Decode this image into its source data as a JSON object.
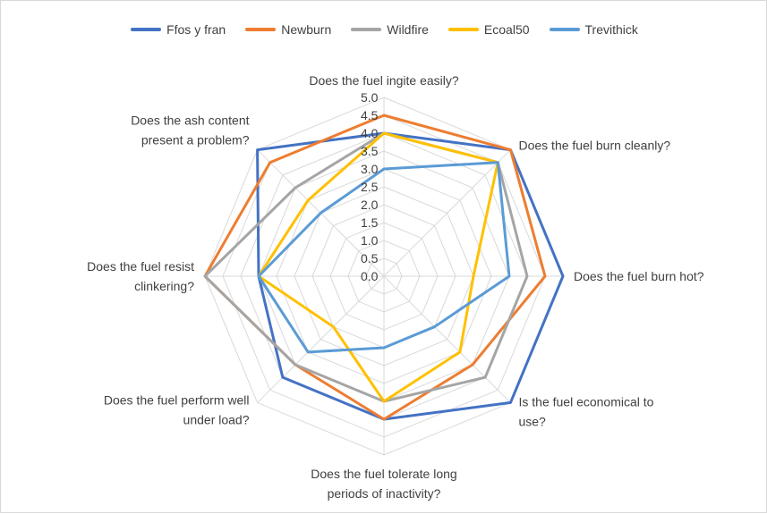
{
  "chart_data": {
    "type": "radar",
    "title": "",
    "categories": [
      "Does the fuel ingite easily?",
      "Does the fuel burn cleanly?",
      "Does the fuel burn hot?",
      "Is the fuel economical to use?",
      "Does the fuel tolerate long periods of inactivity?",
      "Does the fuel perform well under load?",
      "Does the fuel resist clinkering?",
      "Does the ash content present a problem?"
    ],
    "category_lines": [
      [
        "Does the fuel ingite easily?"
      ],
      [
        "Does the fuel burn cleanly?"
      ],
      [
        "Does the fuel burn hot?"
      ],
      [
        "Is the fuel economical to",
        "use?"
      ],
      [
        "Does the fuel tolerate long",
        "periods of inactivity?"
      ],
      [
        "Does the fuel perform well",
        "under load?"
      ],
      [
        "Does the fuel resist",
        "clinkering?"
      ],
      [
        "Does the ash content",
        "present a problem?"
      ]
    ],
    "rlim": [
      0,
      5
    ],
    "ticks": [
      "0.0",
      "0.5",
      "1.0",
      "1.5",
      "2.0",
      "2.5",
      "3.0",
      "3.5",
      "4.0",
      "4.5",
      "5.0"
    ],
    "grid": true,
    "legend_position": "top",
    "series": [
      {
        "name": "Ffos y fran",
        "color": "#4472c4",
        "values": [
          4.0,
          5.0,
          5.0,
          5.0,
          4.0,
          4.0,
          3.5,
          5.0
        ]
      },
      {
        "name": "Newburn",
        "color": "#ed7d31",
        "values": [
          4.5,
          5.0,
          4.5,
          3.5,
          4.0,
          3.5,
          5.0,
          4.5
        ]
      },
      {
        "name": "Wildfire",
        "color": "#a5a5a5",
        "values": [
          4.0,
          4.5,
          4.0,
          4.0,
          3.5,
          3.5,
          5.0,
          3.5
        ]
      },
      {
        "name": "Ecoal50",
        "color": "#ffc000",
        "values": [
          4.0,
          4.5,
          2.5,
          3.0,
          3.5,
          2.0,
          3.5,
          3.0
        ]
      },
      {
        "name": "Trevithick",
        "color": "#5b9bd5",
        "values": [
          3.0,
          4.5,
          3.5,
          2.0,
          2.0,
          3.0,
          3.5,
          2.5
        ]
      }
    ]
  }
}
